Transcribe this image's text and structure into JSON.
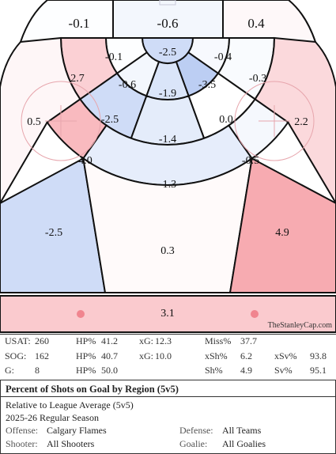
{
  "chart_data": {
    "type": "heatmap",
    "metric": "Percent of Shots on Goal by Region (5v5)",
    "regions": [
      {
        "id": "slot-top-left",
        "label": "-0.1",
        "value": -0.1
      },
      {
        "id": "slot-top-center",
        "label": "-0.6",
        "value": -0.6
      },
      {
        "id": "slot-top-right",
        "label": "0.4",
        "value": 0.4
      },
      {
        "id": "crease",
        "label": "-2.5",
        "value": -2.5
      },
      {
        "id": "inner-left-top",
        "label": "-0.1",
        "value": -0.1
      },
      {
        "id": "inner-right-top",
        "label": "-0.4",
        "value": -0.4
      },
      {
        "id": "inner-left",
        "label": "-0.6",
        "value": -0.6
      },
      {
        "id": "inner-center",
        "label": "-1.9",
        "value": -1.9
      },
      {
        "id": "inner-right",
        "label": "-3.5",
        "value": -3.5
      },
      {
        "id": "mid-left-top",
        "label": "2.7",
        "value": 2.7
      },
      {
        "id": "mid-right-top",
        "label": "-0.3",
        "value": -0.3
      },
      {
        "id": "mid-left",
        "label": "-2.5",
        "value": -2.5
      },
      {
        "id": "mid-center",
        "label": "-1.4",
        "value": -1.4
      },
      {
        "id": "mid-right",
        "label": "0.0",
        "value": 0.0
      },
      {
        "id": "side-left",
        "label": "0.5",
        "value": 0.5
      },
      {
        "id": "side-right",
        "label": "2.2",
        "value": 2.2
      },
      {
        "id": "outer-left",
        "label": "4.0",
        "value": 4.0
      },
      {
        "id": "outer-center",
        "label": "-1.3",
        "value": -1.3
      },
      {
        "id": "outer-right",
        "label": "-0.5",
        "value": -0.5
      },
      {
        "id": "point-left",
        "label": "-2.5",
        "value": -2.5
      },
      {
        "id": "point-center",
        "label": "0.3",
        "value": 0.3
      },
      {
        "id": "point-right",
        "label": "4.9",
        "value": 4.9
      },
      {
        "id": "neutral",
        "label": "3.1",
        "value": 3.1
      }
    ],
    "color_scale": {
      "negative": "#4d7fe0",
      "zero": "#ffffff",
      "positive": "#f0606c"
    },
    "watermark": "TheStanleyCap.com"
  },
  "stats": [
    [
      {
        "k": "USAT:",
        "v": "260"
      },
      {
        "k": "HP%",
        "v": "41.2"
      },
      {
        "k": "xG:",
        "v": "12.3"
      },
      {
        "k": "Miss%",
        "v": "37.7"
      },
      {
        "k": "",
        "v": ""
      }
    ],
    [
      {
        "k": "SOG:",
        "v": "162"
      },
      {
        "k": "HP%",
        "v": "40.7"
      },
      {
        "k": "xG:",
        "v": "10.0"
      },
      {
        "k": "xSh%",
        "v": "6.2"
      },
      {
        "k": "xSv%",
        "v": "93.8"
      }
    ],
    [
      {
        "k": "G:",
        "v": "8"
      },
      {
        "k": "HP%",
        "v": "50.0"
      },
      {
        "k": "",
        "v": ""
      },
      {
        "k": "Sh%",
        "v": "4.9"
      },
      {
        "k": "Sv%",
        "v": "95.1"
      }
    ]
  ],
  "info": {
    "title": "Percent of Shots on Goal by Region (5v5)",
    "subtitle": "Relative to League Average (5v5)",
    "season": "2025-26 Regular Season",
    "offense_label": "Offense:",
    "offense": "Calgary Flames",
    "defense_label": "Defense:",
    "defense": "All Teams",
    "shooter_label": "Shooter:",
    "shooter": "All Shooters",
    "goalie_label": "Goalie:",
    "goalie": "All Goalies"
  }
}
